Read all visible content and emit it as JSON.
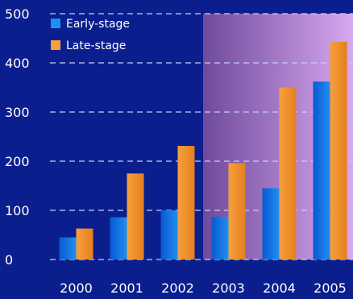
{
  "chart_data": {
    "type": "bar",
    "categories": [
      "2000",
      "2001",
      "2002",
      "2003",
      "2004",
      "2005"
    ],
    "series": [
      {
        "name": "Early-stage",
        "values": [
          45,
          86,
          100,
          87,
          145,
          362
        ]
      },
      {
        "name": "Late-stage",
        "values": [
          63,
          175,
          231,
          196,
          350,
          443
        ]
      }
    ],
    "ylim": [
      0,
      500
    ],
    "yticks": [
      "0",
      "100",
      "200",
      "300",
      "400",
      "500"
    ],
    "grid": true,
    "legend_position": "top-left",
    "highlight": {
      "from_category": "2003",
      "to_category": "2005"
    }
  },
  "colors": {
    "background": "#0b1e8e",
    "early": "#1f8ff2",
    "early_dark": "#0a58d0",
    "late": "#f7a03c",
    "late_dark": "#e57f1f",
    "grid": "#c8cef5",
    "highlight_start": "#6f4a9c",
    "highlight_end": "#d8a8f0"
  }
}
